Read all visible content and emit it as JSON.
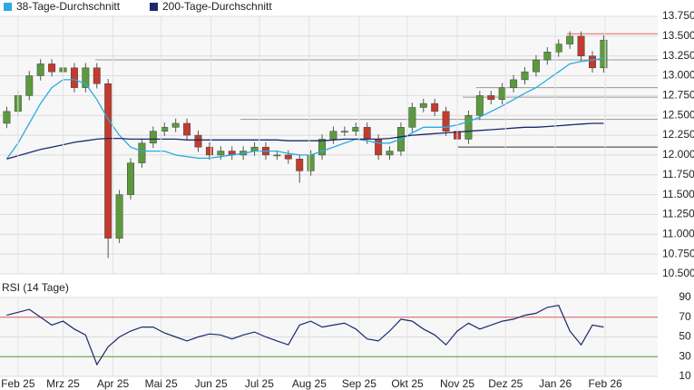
{
  "chart_data": [
    {
      "type": "candlestick",
      "x": [
        -1,
        0,
        1,
        2,
        3,
        4,
        5,
        6,
        7,
        8,
        9,
        10,
        11,
        12,
        13,
        14,
        15,
        16,
        17,
        18,
        19,
        20,
        21,
        22,
        23,
        24,
        25,
        26,
        27,
        28,
        29,
        30,
        31,
        32,
        33,
        34,
        35,
        36,
        37,
        38,
        39,
        40,
        41,
        42,
        43,
        44,
        45,
        46,
        47,
        48,
        49,
        50,
        51,
        52
      ],
      "open": [
        12400,
        12550,
        12750,
        13000,
        13150,
        13050,
        13100,
        12850,
        13100,
        12900,
        10950,
        11500,
        11900,
        12150,
        12300,
        12350,
        12400,
        12250,
        12100,
        12000,
        12050,
        12000,
        12050,
        12100,
        12000,
        12000,
        11950,
        11800,
        12000,
        12200,
        12300,
        12300,
        12350,
        12200,
        12000,
        12050,
        12350,
        12600,
        12650,
        12550,
        12300,
        12200,
        12500,
        12750,
        12700,
        12850,
        12950,
        13050,
        13200,
        13300,
        13400,
        13500,
        13250,
        13100
      ],
      "high": [
        12610,
        12810,
        13060,
        13210,
        13210,
        13160,
        13160,
        13160,
        13160,
        12960,
        11560,
        11960,
        12210,
        12360,
        12410,
        12460,
        12460,
        12310,
        12160,
        12110,
        12110,
        12110,
        12160,
        12160,
        12060,
        12060,
        12010,
        12060,
        12260,
        12360,
        12360,
        12410,
        12410,
        12260,
        12110,
        12410,
        12660,
        12710,
        12710,
        12610,
        12360,
        12560,
        12810,
        12810,
        12910,
        13010,
        13110,
        13260,
        13360,
        13460,
        13560,
        13560,
        13310,
        13510
      ],
      "low": [
        12340,
        12490,
        12690,
        12940,
        12990,
        12990,
        12790,
        12790,
        12840,
        10700,
        10890,
        11440,
        11840,
        12090,
        12240,
        12290,
        12190,
        12040,
        11940,
        11940,
        11940,
        11940,
        11990,
        11940,
        11940,
        11890,
        11650,
        11740,
        11940,
        12140,
        12240,
        12240,
        12140,
        11940,
        11940,
        11990,
        12290,
        12540,
        12490,
        12240,
        12100,
        12140,
        12440,
        12640,
        12640,
        12790,
        12890,
        12990,
        13140,
        13240,
        13340,
        13190,
        13040,
        13040
      ],
      "close": [
        12550,
        12750,
        13000,
        13150,
        13050,
        13100,
        12850,
        13100,
        12900,
        10950,
        11500,
        11900,
        12150,
        12300,
        12350,
        12400,
        12250,
        12100,
        12000,
        12050,
        12000,
        12050,
        12100,
        12000,
        12000,
        11950,
        11800,
        12000,
        12200,
        12300,
        12300,
        12350,
        12200,
        12000,
        12050,
        12350,
        12600,
        12650,
        12550,
        12300,
        12200,
        12500,
        12750,
        12700,
        12850,
        12950,
        13050,
        13200,
        13300,
        13400,
        13500,
        13250,
        13100,
        13450
      ],
      "up_color": "#5c9a3d",
      "down_color": "#c23b2e",
      "series": [
        {
          "name": "38-Tage-Durchschnitt",
          "color": "#29abe2",
          "values": [
            11950,
            12150,
            12400,
            12650,
            12850,
            12950,
            12950,
            12900,
            12700,
            12450,
            12250,
            12100,
            12050,
            12050,
            12050,
            12000,
            11980,
            11960,
            11960,
            11980,
            12000,
            12020,
            12050,
            12050,
            12050,
            12020,
            12000,
            12000,
            12050,
            12100,
            12150,
            12200,
            12180,
            12150,
            12150,
            12200,
            12280,
            12350,
            12350,
            12350,
            12380,
            12420,
            12480,
            12550,
            12620,
            12700,
            12780,
            12850,
            12950,
            13050,
            13150,
            13180,
            13200,
            13220
          ]
        },
        {
          "name": "200-Tage-Durchschnitt",
          "color": "#1b2a6b",
          "values": [
            11950,
            11990,
            12030,
            12070,
            12100,
            12130,
            12160,
            12180,
            12200,
            12210,
            12210,
            12200,
            12200,
            12200,
            12200,
            12200,
            12190,
            12190,
            12190,
            12190,
            12190,
            12190,
            12190,
            12190,
            12190,
            12180,
            12180,
            12180,
            12180,
            12190,
            12200,
            12200,
            12200,
            12200,
            12210,
            12230,
            12250,
            12260,
            12270,
            12280,
            12290,
            12300,
            12310,
            12320,
            12330,
            12340,
            12350,
            12350,
            12360,
            12370,
            12380,
            12390,
            12400,
            12400
          ]
        }
      ],
      "levels": [
        {
          "value": 13530,
          "color": "#e06060"
        },
        {
          "value": 13200,
          "color": "#999999"
        },
        {
          "value": 12850,
          "color": "#999999"
        },
        {
          "value": 12730,
          "color": "#999999"
        },
        {
          "value": 12450,
          "color": "#999999"
        },
        {
          "value": 12100,
          "color": "#333333"
        }
      ],
      "xlim": [
        -1.6,
        56.8
      ],
      "ylim": [
        10500,
        13750
      ],
      "yticks": [
        {
          "value": 10500,
          "label": "10.500"
        },
        {
          "value": 10750,
          "label": "10.750"
        },
        {
          "value": 11000,
          "label": "11.000"
        },
        {
          "value": 11250,
          "label": "11.250"
        },
        {
          "value": 11500,
          "label": "11.500"
        },
        {
          "value": 11750,
          "label": "11.750"
        },
        {
          "value": 12000,
          "label": "12.000"
        },
        {
          "value": 12250,
          "label": "12.250"
        },
        {
          "value": 12500,
          "label": "12.500"
        },
        {
          "value": 12750,
          "label": "12.750"
        },
        {
          "value": 13000,
          "label": "13.000"
        },
        {
          "value": 13250,
          "label": "13.250"
        },
        {
          "value": 13500,
          "label": "13.500"
        },
        {
          "value": 13750,
          "label": "13.750"
        }
      ],
      "grid": true
    },
    {
      "type": "line",
      "title": "RSI (14 Tage)",
      "x": [
        -1,
        0,
        1,
        2,
        3,
        4,
        5,
        6,
        7,
        8,
        9,
        10,
        11,
        12,
        13,
        14,
        15,
        16,
        17,
        18,
        19,
        20,
        21,
        22,
        23,
        24,
        25,
        26,
        27,
        28,
        29,
        30,
        31,
        32,
        33,
        34,
        35,
        36,
        37,
        38,
        39,
        40,
        41,
        42,
        43,
        44,
        45,
        46,
        47,
        48,
        49,
        50,
        51,
        52
      ],
      "values": [
        72,
        75,
        78,
        70,
        62,
        66,
        58,
        52,
        22,
        40,
        50,
        56,
        60,
        60,
        54,
        50,
        46,
        50,
        53,
        52,
        48,
        52,
        55,
        50,
        46,
        42,
        62,
        66,
        60,
        62,
        64,
        58,
        48,
        46,
        56,
        68,
        66,
        58,
        52,
        42,
        56,
        64,
        58,
        62,
        66,
        68,
        72,
        74,
        80,
        82,
        56,
        42,
        62,
        60
      ],
      "color": "#1b2a6b",
      "levels": [
        {
          "value": 70,
          "color": "#e06060"
        },
        {
          "value": 30,
          "color": "#5c9a3d"
        }
      ],
      "xlim": [
        -1.6,
        56.8
      ],
      "ylim": [
        10,
        90
      ],
      "yticks": [
        10,
        30,
        50,
        70,
        90
      ],
      "xticks": [
        {
          "value": 0,
          "label": "Feb 25"
        },
        {
          "value": 4,
          "label": "Mrz 25"
        },
        {
          "value": 8.43,
          "label": "Apr 25"
        },
        {
          "value": 12.71,
          "label": "Mai 25"
        },
        {
          "value": 17.14,
          "label": "Jun 25"
        },
        {
          "value": 21.43,
          "label": "Jul 25"
        },
        {
          "value": 25.86,
          "label": "Aug 25"
        },
        {
          "value": 30.29,
          "label": "Sep 25"
        },
        {
          "value": 34.57,
          "label": "Okt 25"
        },
        {
          "value": 39,
          "label": "Nov 25"
        },
        {
          "value": 43.29,
          "label": "Dez 25"
        },
        {
          "value": 47.71,
          "label": "Jan 26"
        },
        {
          "value": 52.14,
          "label": "Feb 26"
        }
      ],
      "grid": true
    }
  ]
}
